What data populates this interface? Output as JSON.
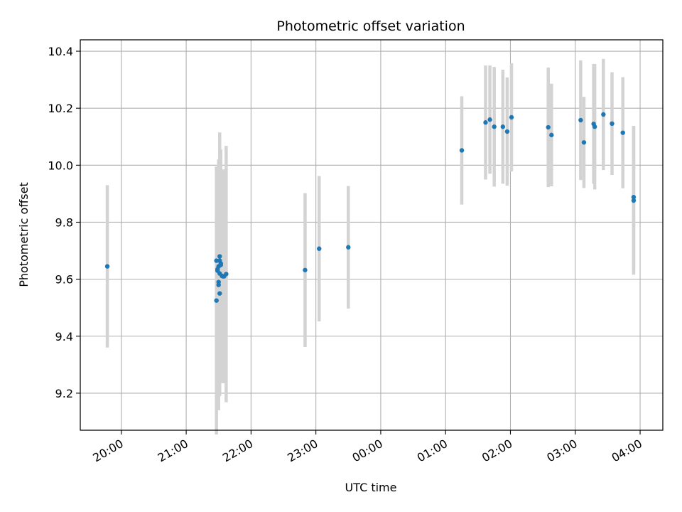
{
  "chart_data": {
    "type": "scatter",
    "title": "Photometric offset variation",
    "xlabel": "UTC time",
    "ylabel": "Photometric offset",
    "x_ticks": [
      "20:00",
      "21:00",
      "22:00",
      "23:00",
      "00:00",
      "01:00",
      "02:00",
      "03:00",
      "04:00"
    ],
    "x_tick_hours": [
      20,
      21,
      22,
      23,
      24,
      25,
      26,
      27,
      28
    ],
    "xlim": [
      "19:22",
      "04:21"
    ],
    "ylim": [
      9.07,
      10.44
    ],
    "y_ticks": [
      "9.2",
      "9.4",
      "9.6",
      "9.8",
      "10.0",
      "10.2",
      "10.4"
    ],
    "grid": true,
    "marker_color": "#1f77b4",
    "errorbar_color": "#d3d3d3",
    "points": [
      {
        "t": "19:47",
        "y": 9.645,
        "err": 0.285
      },
      {
        "t": "21:28",
        "y": 9.525,
        "err": 0.47
      },
      {
        "t": "21:28",
        "y": 9.665,
        "err": 0.33
      },
      {
        "t": "21:29",
        "y": 9.63,
        "err": 0.36
      },
      {
        "t": "21:29",
        "y": 9.635,
        "err": 0.36
      },
      {
        "t": "21:30",
        "y": 9.58,
        "err": 0.44
      },
      {
        "t": "21:30",
        "y": 9.645,
        "err": 0.33
      },
      {
        "t": "21:30",
        "y": 9.59,
        "err": 0.4
      },
      {
        "t": "21:31",
        "y": 9.62,
        "err": 0.4
      },
      {
        "t": "21:31",
        "y": 9.55,
        "err": 0.36
      },
      {
        "t": "21:31",
        "y": 9.665,
        "err": 0.35
      },
      {
        "t": "21:31",
        "y": 9.68,
        "err": 0.435
      },
      {
        "t": "21:32",
        "y": 9.655,
        "err": 0.4
      },
      {
        "t": "21:32",
        "y": 9.65,
        "err": 0.4
      },
      {
        "t": "21:33",
        "y": 9.612,
        "err": 0.37
      },
      {
        "t": "21:34",
        "y": 9.61,
        "err": 0.375
      },
      {
        "t": "21:35",
        "y": 9.61,
        "err": 0.375
      },
      {
        "t": "21:37",
        "y": 9.618,
        "err": 0.45
      },
      {
        "t": "22:50",
        "y": 9.632,
        "err": 0.27
      },
      {
        "t": "23:03",
        "y": 9.707,
        "err": 0.255
      },
      {
        "t": "23:30",
        "y": 9.712,
        "err": 0.215
      },
      {
        "t": "01:15",
        "y": 10.052,
        "err": 0.19
      },
      {
        "t": "01:37",
        "y": 10.15,
        "err": 0.2
      },
      {
        "t": "01:41",
        "y": 10.16,
        "err": 0.19
      },
      {
        "t": "01:45",
        "y": 10.135,
        "err": 0.21
      },
      {
        "t": "01:53",
        "y": 10.135,
        "err": 0.2
      },
      {
        "t": "01:57",
        "y": 10.118,
        "err": 0.19
      },
      {
        "t": "02:01",
        "y": 10.168,
        "err": 0.19
      },
      {
        "t": "02:35",
        "y": 10.133,
        "err": 0.21
      },
      {
        "t": "02:38",
        "y": 10.106,
        "err": 0.18
      },
      {
        "t": "03:05",
        "y": 10.158,
        "err": 0.21
      },
      {
        "t": "03:08",
        "y": 10.08,
        "err": 0.16
      },
      {
        "t": "03:17",
        "y": 10.145,
        "err": 0.21
      },
      {
        "t": "03:18",
        "y": 10.135,
        "err": 0.22
      },
      {
        "t": "03:26",
        "y": 10.178,
        "err": 0.195
      },
      {
        "t": "03:34",
        "y": 10.146,
        "err": 0.18
      },
      {
        "t": "03:44",
        "y": 10.114,
        "err": 0.195
      },
      {
        "t": "03:54",
        "y": 9.888,
        "err": 0.25
      },
      {
        "t": "03:54",
        "y": 9.876,
        "err": 0.26
      }
    ]
  }
}
